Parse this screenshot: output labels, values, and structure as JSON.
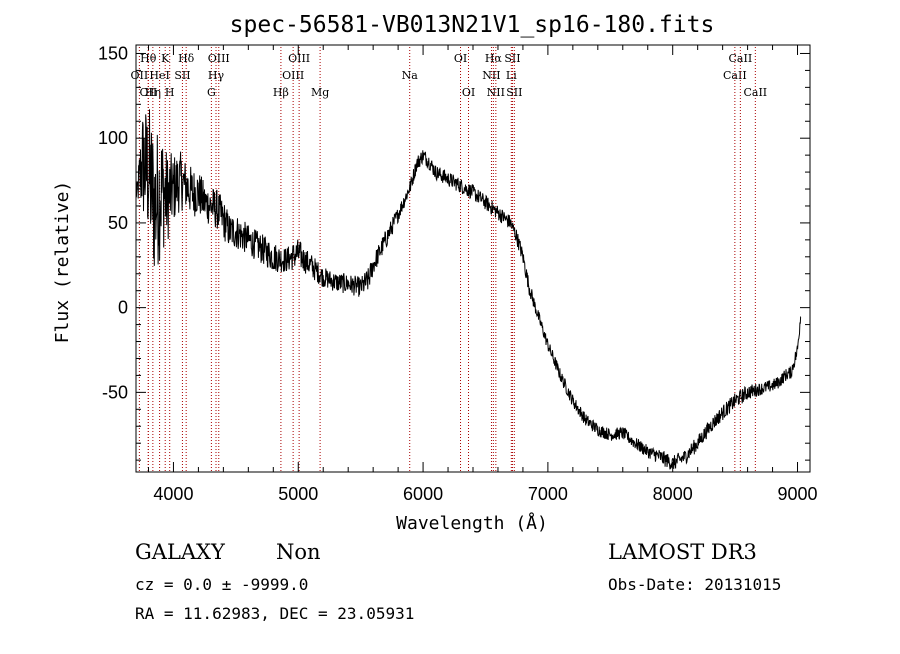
{
  "chart_data": {
    "type": "line",
    "title": "spec-56581-VB013N21V1_sp16-180.fits",
    "xlabel": "Wavelength (Å)",
    "ylabel": "Flux (relative)",
    "xlim": [
      3700,
      9100
    ],
    "ylim": [
      -97,
      155
    ],
    "x_ticks": [
      4000,
      5000,
      6000,
      7000,
      8000,
      9000
    ],
    "y_ticks": [
      -50,
      0,
      50,
      100,
      150
    ],
    "grid": false,
    "line_color": "#000000",
    "marker_color": "#aa0000",
    "series": [
      {
        "name": "flux",
        "x": [
          3700,
          3750,
          3800,
          3850,
          3900,
          3950,
          4000,
          4050,
          4100,
          4150,
          4200,
          4250,
          4300,
          4350,
          4400,
          4450,
          4500,
          4600,
          4700,
          4800,
          4900,
          5000,
          5050,
          5100,
          5200,
          5300,
          5400,
          5500,
          5560,
          5600,
          5700,
          5800,
          5900,
          5950,
          6000,
          6050,
          6100,
          6200,
          6300,
          6400,
          6500,
          6600,
          6700,
          6750,
          6800,
          6850,
          6900,
          7000,
          7100,
          7200,
          7300,
          7400,
          7500,
          7600,
          7700,
          7800,
          7900,
          8000,
          8100,
          8200,
          8300,
          8400,
          8500,
          8600,
          8700,
          8800,
          8850,
          8900,
          8950,
          9000,
          9030
        ],
        "y": [
          65,
          85,
          80,
          60,
          70,
          65,
          70,
          75,
          72,
          68,
          68,
          62,
          60,
          58,
          52,
          45,
          45,
          40,
          35,
          30,
          28,
          32,
          28,
          25,
          18,
          15,
          14,
          12,
          16,
          25,
          40,
          55,
          72,
          85,
          90,
          86,
          80,
          76,
          72,
          68,
          62,
          56,
          50,
          42,
          30,
          12,
          0,
          -22,
          -40,
          -55,
          -66,
          -72,
          -75,
          -74,
          -80,
          -85,
          -88,
          -92,
          -88,
          -80,
          -70,
          -62,
          -55,
          -50,
          -48,
          -46,
          -44,
          -40,
          -38,
          -25,
          0
        ],
        "noise": [
          0,
          22,
          28,
          30,
          26,
          18,
          14,
          12,
          10,
          10,
          9,
          8,
          8,
          8,
          8,
          7,
          7,
          6,
          6,
          6,
          5,
          6,
          5,
          5,
          4,
          4,
          4,
          4,
          5,
          4,
          4,
          3,
          3,
          3,
          3,
          3,
          3,
          3,
          3,
          3,
          3,
          3,
          3,
          3,
          3,
          3,
          2.5,
          2.5,
          2.5,
          2.5,
          2.5,
          2.5,
          2.5,
          2.5,
          2.5,
          2.5,
          3,
          3,
          3,
          3,
          3,
          3,
          3,
          3,
          2.5,
          2.5,
          2.5,
          2.5,
          2.5,
          3,
          3
        ]
      }
    ],
    "lines": [
      {
        "wavelength": 3727,
        "row": 1,
        "label": "OII"
      },
      {
        "wavelength": 3798,
        "row": 0,
        "label": "Hθ"
      },
      {
        "wavelength": 3799,
        "row": 2,
        "label": "OII"
      },
      {
        "wavelength": 3835,
        "row": 2,
        "label": "Hη"
      },
      {
        "wavelength": 3889,
        "row": 1,
        "label": "HeI"
      },
      {
        "wavelength": 3934,
        "row": 0,
        "label": "K"
      },
      {
        "wavelength": 3970,
        "row": 2,
        "label": "H"
      },
      {
        "wavelength": 4072,
        "row": 1,
        "label": "SII"
      },
      {
        "wavelength": 4102,
        "row": 0,
        "label": "Hδ"
      },
      {
        "wavelength": 4304,
        "row": 2,
        "label": "G"
      },
      {
        "wavelength": 4341,
        "row": 1,
        "label": "Hγ"
      },
      {
        "wavelength": 4363,
        "row": 0,
        "label": "OIII"
      },
      {
        "wavelength": 4861,
        "row": 2,
        "label": "Hβ"
      },
      {
        "wavelength": 4959,
        "row": 1,
        "label": "OIII"
      },
      {
        "wavelength": 5007,
        "row": 0,
        "label": "OIII"
      },
      {
        "wavelength": 5175,
        "row": 2,
        "label": "Mg"
      },
      {
        "wavelength": 5893,
        "row": 1,
        "label": "Na"
      },
      {
        "wavelength": 6300,
        "row": 0,
        "label": "OI"
      },
      {
        "wavelength": 6364,
        "row": 2,
        "label": "OI"
      },
      {
        "wavelength": 6548,
        "row": 1,
        "label": "NII"
      },
      {
        "wavelength": 6563,
        "row": 0,
        "label": "Hα"
      },
      {
        "wavelength": 6583,
        "row": 2,
        "label": "NII"
      },
      {
        "wavelength": 6707,
        "row": 1,
        "label": "Li"
      },
      {
        "wavelength": 6716,
        "row": 0,
        "label": "SII"
      },
      {
        "wavelength": 6731,
        "row": 2,
        "label": "SII"
      },
      {
        "wavelength": 8498,
        "row": 1,
        "label": "CaII"
      },
      {
        "wavelength": 8542,
        "row": 0,
        "label": "CaII"
      },
      {
        "wavelength": 8662,
        "row": 2,
        "label": "CaII"
      }
    ]
  },
  "info": {
    "class": "GALAXY",
    "subclass": "Non",
    "survey": "LAMOST DR3",
    "cz": "cz = 0.0 ± -9999.0",
    "obs_date": "Obs-Date: 20131015",
    "coords": "RA =  11.62983, DEC =  23.05931"
  }
}
